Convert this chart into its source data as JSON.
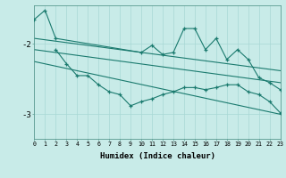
{
  "xlabel": "Humidex (Indice chaleur)",
  "background_color": "#c8ebe8",
  "line_color": "#1a7a6e",
  "grid_color": "#a8d8d4",
  "xlim": [
    0,
    23
  ],
  "ylim": [
    -3.35,
    -1.45
  ],
  "yticks": [
    -3,
    -2
  ],
  "xticks": [
    0,
    1,
    2,
    3,
    4,
    5,
    6,
    7,
    8,
    9,
    10,
    11,
    12,
    13,
    14,
    15,
    16,
    17,
    18,
    19,
    20,
    21,
    22,
    23
  ],
  "main_x": [
    0,
    1,
    2,
    10,
    11,
    12,
    13,
    14,
    15,
    16,
    17,
    18,
    19,
    20,
    21,
    22,
    23
  ],
  "main_y": [
    -1.65,
    -1.52,
    -1.92,
    -2.12,
    -2.02,
    -2.15,
    -2.12,
    -1.78,
    -1.78,
    -2.08,
    -1.92,
    -2.22,
    -2.08,
    -2.22,
    -2.48,
    -2.55,
    -2.65
  ],
  "lower_x": [
    2,
    3,
    4,
    5,
    6,
    7,
    8,
    9,
    10,
    11,
    12,
    13,
    14,
    15,
    16,
    17,
    18,
    19,
    20,
    21,
    22,
    23
  ],
  "lower_y": [
    -2.08,
    -2.28,
    -2.45,
    -2.45,
    -2.58,
    -2.68,
    -2.72,
    -2.88,
    -2.82,
    -2.78,
    -2.72,
    -2.68,
    -2.62,
    -2.62,
    -2.65,
    -2.62,
    -2.58,
    -2.58,
    -2.68,
    -2.72,
    -2.82,
    -2.98
  ],
  "upper_line_x": [
    0,
    23
  ],
  "upper_line_y": [
    -1.92,
    -2.38
  ],
  "mid_line_x": [
    0,
    23
  ],
  "mid_line_y": [
    -2.08,
    -2.55
  ],
  "low_line_x": [
    0,
    23
  ],
  "low_line_y": [
    -2.25,
    -3.0
  ],
  "figsize": [
    3.2,
    2.0
  ],
  "dpi": 100
}
